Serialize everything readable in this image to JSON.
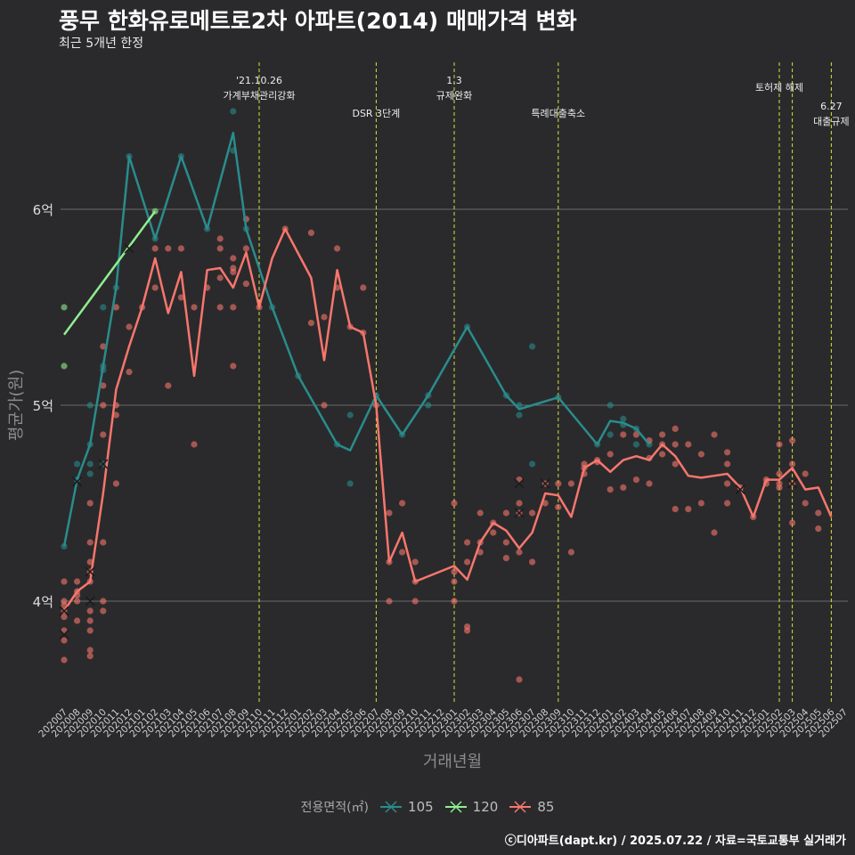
{
  "chart_data": {
    "type": "line",
    "title": "풍무 한화유로메트로2차 아파트(2014) 매매가격 변화",
    "subtitle": "최근 5개년 한정",
    "xlabel": "거래년월",
    "ylabel": "평균가(원)",
    "ylim": [
      3.5,
      6.7
    ],
    "y_ticks": [
      {
        "value": 4,
        "label": "4억"
      },
      {
        "value": 5,
        "label": "5억"
      },
      {
        "value": 6,
        "label": "6억"
      }
    ],
    "months": [
      "202007",
      "202008",
      "202009",
      "202010",
      "202011",
      "202012",
      "202101",
      "202102",
      "202103",
      "202104",
      "202105",
      "202106",
      "202107",
      "202108",
      "202109",
      "202110",
      "202111",
      "202112",
      "202201",
      "202202",
      "202203",
      "202204",
      "202205",
      "202206",
      "202207",
      "202208",
      "202209",
      "202210",
      "202211",
      "202212",
      "202301",
      "202302",
      "202303",
      "202304",
      "202305",
      "202306",
      "202307",
      "202308",
      "202309",
      "202310",
      "202311",
      "202312",
      "202401",
      "202402",
      "202403",
      "202404",
      "202405",
      "202406",
      "202407",
      "202408",
      "202409",
      "202410",
      "202411",
      "202412",
      "202501",
      "202502",
      "202503",
      "202504",
      "202505",
      "202506",
      "202507"
    ],
    "legend_title": "전용면적(㎡)",
    "series": [
      {
        "name": "105",
        "color": "#2a8c8c",
        "line": [
          [
            0,
            4.28
          ],
          [
            1,
            4.62
          ],
          [
            2,
            4.8
          ],
          [
            3,
            5.2
          ],
          [
            4,
            5.6
          ],
          [
            5,
            6.27
          ],
          [
            7,
            5.85
          ],
          [
            9,
            6.27
          ],
          [
            11,
            5.9
          ],
          [
            13,
            6.39
          ],
          [
            14,
            5.9
          ],
          [
            16,
            5.5
          ],
          [
            18,
            5.15
          ],
          [
            21,
            4.8
          ],
          [
            22,
            4.77
          ],
          [
            24,
            5.05
          ],
          [
            26,
            4.85
          ],
          [
            28,
            5.05
          ],
          [
            31,
            5.4
          ],
          [
            34,
            5.05
          ],
          [
            35,
            4.98
          ],
          [
            36,
            5.0
          ],
          [
            38,
            5.04
          ],
          [
            41,
            4.8
          ],
          [
            42,
            4.92
          ],
          [
            43,
            4.91
          ],
          [
            44,
            4.88
          ],
          [
            45,
            4.8
          ]
        ],
        "points": [
          [
            0,
            4.28
          ],
          [
            1,
            4.7
          ],
          [
            1,
            4.62
          ],
          [
            2,
            5.0
          ],
          [
            2,
            4.8
          ],
          [
            2,
            4.7
          ],
          [
            2,
            4.65
          ],
          [
            3,
            5.2
          ],
          [
            3,
            5.18
          ],
          [
            3,
            5.5
          ],
          [
            3,
            4.7
          ],
          [
            4,
            5.6
          ],
          [
            5,
            6.27
          ],
          [
            7,
            5.85
          ],
          [
            9,
            6.27
          ],
          [
            11,
            5.9
          ],
          [
            13,
            6.5
          ],
          [
            13,
            6.3
          ],
          [
            14,
            5.9
          ],
          [
            16,
            5.5
          ],
          [
            18,
            5.15
          ],
          [
            21,
            4.8
          ],
          [
            22,
            4.95
          ],
          [
            22,
            4.6
          ],
          [
            24,
            5.05
          ],
          [
            26,
            4.85
          ],
          [
            28,
            5.05
          ],
          [
            28,
            5.0
          ],
          [
            31,
            5.4
          ],
          [
            34,
            5.05
          ],
          [
            35,
            4.95
          ],
          [
            35,
            5.0
          ],
          [
            36,
            5.3
          ],
          [
            36,
            4.7
          ],
          [
            38,
            5.04
          ],
          [
            41,
            4.8
          ],
          [
            42,
            5.0
          ],
          [
            42,
            4.85
          ],
          [
            43,
            4.93
          ],
          [
            43,
            4.9
          ],
          [
            44,
            4.88
          ],
          [
            44,
            4.8
          ],
          [
            45,
            4.8
          ]
        ],
        "crosses": [
          [
            1,
            4.61
          ],
          [
            3,
            4.7
          ]
        ]
      },
      {
        "name": "120",
        "color": "#90ee90",
        "line": [
          [
            0,
            5.36
          ],
          [
            7,
            5.99
          ]
        ],
        "points": [
          [
            0,
            5.5
          ],
          [
            0,
            5.2
          ],
          [
            7,
            5.99
          ]
        ],
        "crosses": []
      },
      {
        "name": "85",
        "color": "#f8766d",
        "line": [
          [
            0,
            3.95
          ],
          [
            1,
            4.05
          ],
          [
            2,
            4.1
          ],
          [
            3,
            4.55
          ],
          [
            4,
            5.08
          ],
          [
            5,
            5.3
          ],
          [
            6,
            5.5
          ],
          [
            7,
            5.75
          ],
          [
            8,
            5.47
          ],
          [
            9,
            5.68
          ],
          [
            10,
            5.15
          ],
          [
            11,
            5.69
          ],
          [
            12,
            5.7
          ],
          [
            13,
            5.6
          ],
          [
            14,
            5.78
          ],
          [
            15,
            5.5
          ],
          [
            16,
            5.75
          ],
          [
            17,
            5.9
          ],
          [
            19,
            5.65
          ],
          [
            20,
            5.23
          ],
          [
            21,
            5.69
          ],
          [
            22,
            5.4
          ],
          [
            23,
            5.37
          ],
          [
            24,
            5.0
          ],
          [
            25,
            4.2
          ],
          [
            26,
            4.35
          ],
          [
            27,
            4.1
          ],
          [
            30,
            4.18
          ],
          [
            31,
            4.11
          ],
          [
            32,
            4.3
          ],
          [
            33,
            4.4
          ],
          [
            34,
            4.36
          ],
          [
            35,
            4.27
          ],
          [
            36,
            4.35
          ],
          [
            37,
            4.55
          ],
          [
            38,
            4.54
          ],
          [
            39,
            4.43
          ],
          [
            40,
            4.68
          ],
          [
            41,
            4.72
          ],
          [
            42,
            4.66
          ],
          [
            43,
            4.72
          ],
          [
            44,
            4.74
          ],
          [
            45,
            4.72
          ],
          [
            46,
            4.8
          ],
          [
            47,
            4.74
          ],
          [
            48,
            4.64
          ],
          [
            49,
            4.63
          ],
          [
            50,
            4.64
          ],
          [
            51,
            4.65
          ],
          [
            52,
            4.58
          ],
          [
            53,
            4.43
          ],
          [
            54,
            4.62
          ],
          [
            55,
            4.62
          ],
          [
            56,
            4.68
          ],
          [
            57,
            4.57
          ],
          [
            58,
            4.58
          ],
          [
            59,
            4.43
          ]
        ],
        "points": [
          [
            0,
            4.0
          ],
          [
            0,
            3.98
          ],
          [
            0,
            3.95
          ],
          [
            0,
            3.92
          ],
          [
            0,
            3.85
          ],
          [
            0,
            3.8
          ],
          [
            0,
            3.7
          ],
          [
            0,
            4.1
          ],
          [
            1,
            4.05
          ],
          [
            1,
            4.03
          ],
          [
            1,
            4.0
          ],
          [
            1,
            3.9
          ],
          [
            1,
            4.1
          ],
          [
            2,
            4.3
          ],
          [
            2,
            4.2
          ],
          [
            2,
            4.15
          ],
          [
            2,
            4.1
          ],
          [
            2,
            3.95
          ],
          [
            2,
            3.9
          ],
          [
            2,
            3.85
          ],
          [
            2,
            3.75
          ],
          [
            2,
            3.72
          ],
          [
            2,
            4.5
          ],
          [
            3,
            5.3
          ],
          [
            3,
            5.1
          ],
          [
            3,
            5.0
          ],
          [
            3,
            4.85
          ],
          [
            3,
            4.3
          ],
          [
            3,
            4.0
          ],
          [
            3,
            3.95
          ],
          [
            4,
            5.5
          ],
          [
            4,
            5.0
          ],
          [
            4,
            4.95
          ],
          [
            4,
            4.6
          ],
          [
            5,
            5.4
          ],
          [
            5,
            5.17
          ],
          [
            6,
            5.5
          ],
          [
            7,
            5.8
          ],
          [
            7,
            5.6
          ],
          [
            8,
            5.8
          ],
          [
            8,
            5.1
          ],
          [
            9,
            5.8
          ],
          [
            9,
            5.55
          ],
          [
            10,
            5.5
          ],
          [
            10,
            4.8
          ],
          [
            11,
            5.6
          ],
          [
            12,
            5.85
          ],
          [
            12,
            5.8
          ],
          [
            12,
            5.65
          ],
          [
            12,
            5.5
          ],
          [
            13,
            5.75
          ],
          [
            13,
            5.7
          ],
          [
            13,
            5.68
          ],
          [
            13,
            5.5
          ],
          [
            13,
            5.2
          ],
          [
            14,
            5.95
          ],
          [
            14,
            5.8
          ],
          [
            14,
            5.62
          ],
          [
            15,
            5.5
          ],
          [
            17,
            5.9
          ],
          [
            19,
            5.88
          ],
          [
            19,
            5.42
          ],
          [
            20,
            5.45
          ],
          [
            20,
            5.0
          ],
          [
            21,
            5.8
          ],
          [
            21,
            5.6
          ],
          [
            22,
            5.4
          ],
          [
            23,
            5.6
          ],
          [
            23,
            5.37
          ],
          [
            24,
            5.0
          ],
          [
            25,
            4.45
          ],
          [
            25,
            4.2
          ],
          [
            25,
            4.0
          ],
          [
            26,
            4.5
          ],
          [
            26,
            4.25
          ],
          [
            27,
            4.2
          ],
          [
            27,
            4.1
          ],
          [
            27,
            4.0
          ],
          [
            30,
            4.5
          ],
          [
            30,
            4.15
          ],
          [
            30,
            4.1
          ],
          [
            30,
            4.0
          ],
          [
            31,
            4.3
          ],
          [
            31,
            4.2
          ],
          [
            31,
            3.87
          ],
          [
            31,
            3.85
          ],
          [
            32,
            4.45
          ],
          [
            32,
            4.3
          ],
          [
            32,
            4.25
          ],
          [
            33,
            4.4
          ],
          [
            33,
            4.35
          ],
          [
            34,
            4.45
          ],
          [
            34,
            4.3
          ],
          [
            34,
            4.22
          ],
          [
            35,
            4.62
          ],
          [
            35,
            4.5
          ],
          [
            35,
            4.45
          ],
          [
            35,
            4.25
          ],
          [
            35,
            3.6
          ],
          [
            36,
            4.45
          ],
          [
            36,
            4.2
          ],
          [
            37,
            4.6
          ],
          [
            37,
            4.5
          ],
          [
            38,
            4.6
          ],
          [
            38,
            4.48
          ],
          [
            39,
            4.6
          ],
          [
            39,
            4.25
          ],
          [
            40,
            4.7
          ],
          [
            40,
            4.68
          ],
          [
            40,
            4.65
          ],
          [
            41,
            4.72
          ],
          [
            41,
            4.71
          ],
          [
            42,
            4.75
          ],
          [
            42,
            4.57
          ],
          [
            43,
            4.85
          ],
          [
            43,
            4.58
          ],
          [
            44,
            4.85
          ],
          [
            44,
            4.62
          ],
          [
            45,
            4.82
          ],
          [
            45,
            4.73
          ],
          [
            45,
            4.6
          ],
          [
            46,
            4.85
          ],
          [
            46,
            4.8
          ],
          [
            46,
            4.75
          ],
          [
            47,
            4.88
          ],
          [
            47,
            4.8
          ],
          [
            47,
            4.7
          ],
          [
            47,
            4.47
          ],
          [
            48,
            4.8
          ],
          [
            48,
            4.47
          ],
          [
            49,
            4.75
          ],
          [
            49,
            4.5
          ],
          [
            50,
            4.85
          ],
          [
            50,
            4.35
          ],
          [
            51,
            4.76
          ],
          [
            51,
            4.7
          ],
          [
            51,
            4.6
          ],
          [
            51,
            4.5
          ],
          [
            52,
            4.58
          ],
          [
            53,
            4.43
          ],
          [
            54,
            4.62
          ],
          [
            54,
            4.6
          ],
          [
            55,
            4.8
          ],
          [
            55,
            4.65
          ],
          [
            55,
            4.6
          ],
          [
            55,
            4.58
          ],
          [
            56,
            4.82
          ],
          [
            56,
            4.7
          ],
          [
            56,
            4.6
          ],
          [
            56,
            4.4
          ],
          [
            57,
            4.65
          ],
          [
            57,
            4.5
          ],
          [
            58,
            4.45
          ],
          [
            58,
            4.37
          ]
        ],
        "crosses": [
          [
            0,
            3.83
          ],
          [
            0,
            3.95
          ],
          [
            2,
            4.0
          ],
          [
            2,
            4.15
          ],
          [
            5,
            5.8
          ],
          [
            35,
            4.6
          ],
          [
            35,
            4.45
          ],
          [
            37,
            4.6
          ],
          [
            52,
            4.57
          ],
          [
            56,
            4.6
          ]
        ]
      }
    ],
    "events": [
      {
        "date": "202110",
        "label": "'21.10.26\n가계부채관리강화",
        "row": 0
      },
      {
        "date": "202207",
        "label": "DSR 3단계",
        "row": 1
      },
      {
        "date": "202301",
        "label": "1.3\n규제완화",
        "row": 0
      },
      {
        "date": "202309",
        "label": "특례대출축소",
        "row": 1
      },
      {
        "date": "202502",
        "label": "토허제 해제",
        "row": 0
      },
      {
        "date": "202503",
        "label": "",
        "row": 0
      },
      {
        "date": "202506",
        "label": "6.27\n대출규제",
        "row": 1
      }
    ],
    "grid": true,
    "legend_position": "bottom"
  },
  "caption": "ⓒ디아파트(dapt.kr) / 2025.07.22 / 자료=국토교통부 실거래가"
}
